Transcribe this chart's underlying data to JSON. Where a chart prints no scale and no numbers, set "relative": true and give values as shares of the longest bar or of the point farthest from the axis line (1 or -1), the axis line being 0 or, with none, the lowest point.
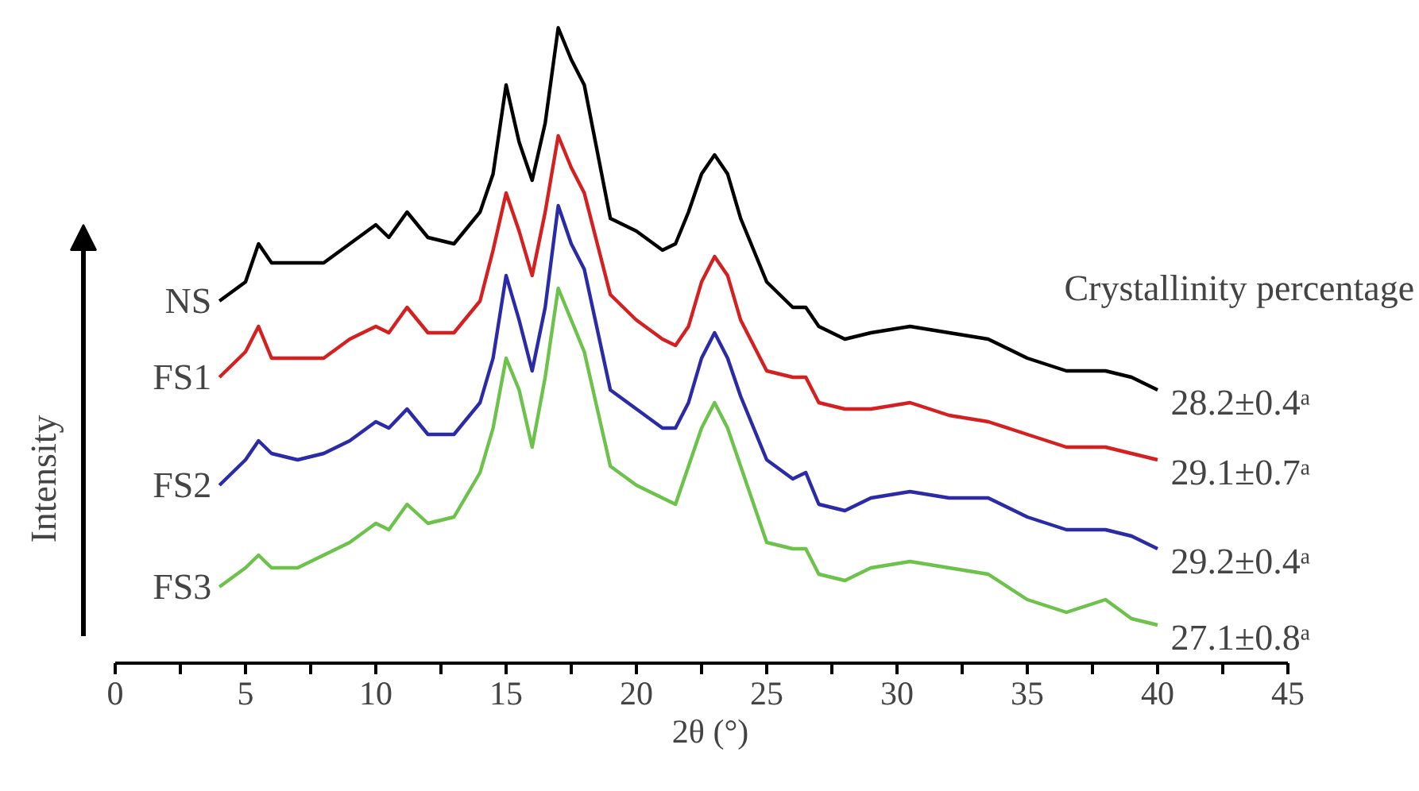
{
  "chart_data": {
    "type": "line",
    "relative": true,
    "xlabel": "2θ (°)",
    "ylabel": "Intensity",
    "xlim": [
      0,
      45
    ],
    "xticks": [
      0,
      5,
      10,
      15,
      20,
      25,
      30,
      35,
      40,
      45
    ],
    "x": [
      4,
      5,
      5.5,
      6,
      7,
      8,
      9,
      10,
      10.5,
      11.2,
      12,
      13,
      14,
      14.5,
      15,
      15.5,
      16,
      16.5,
      17,
      17.5,
      18,
      19,
      20,
      21,
      21.5,
      22,
      22.5,
      23,
      23.5,
      24,
      25,
      26,
      26.5,
      27,
      28,
      29,
      30.5,
      32,
      33.5,
      35,
      36.5,
      38,
      39,
      40
    ],
    "series": [
      {
        "name": "NS",
        "color": "#000000",
        "values": [
          0.57,
          0.6,
          0.66,
          0.63,
          0.63,
          0.63,
          0.66,
          0.69,
          0.67,
          0.71,
          0.67,
          0.66,
          0.71,
          0.77,
          0.91,
          0.82,
          0.76,
          0.85,
          1.0,
          0.95,
          0.91,
          0.7,
          0.68,
          0.65,
          0.66,
          0.71,
          0.77,
          0.8,
          0.77,
          0.7,
          0.6,
          0.56,
          0.56,
          0.53,
          0.51,
          0.52,
          0.53,
          0.52,
          0.51,
          0.48,
          0.46,
          0.46,
          0.45,
          0.43
        ]
      },
      {
        "name": "FS1",
        "color": "#d42020",
        "values": [
          0.45,
          0.49,
          0.53,
          0.48,
          0.48,
          0.48,
          0.51,
          0.53,
          0.52,
          0.56,
          0.52,
          0.52,
          0.57,
          0.65,
          0.74,
          0.68,
          0.61,
          0.71,
          0.83,
          0.78,
          0.74,
          0.58,
          0.54,
          0.51,
          0.5,
          0.53,
          0.6,
          0.64,
          0.61,
          0.54,
          0.46,
          0.45,
          0.45,
          0.41,
          0.4,
          0.4,
          0.41,
          0.39,
          0.38,
          0.36,
          0.34,
          0.34,
          0.33,
          0.32
        ]
      },
      {
        "name": "FS2",
        "color": "#2b2ba8",
        "values": [
          0.28,
          0.32,
          0.35,
          0.33,
          0.32,
          0.33,
          0.35,
          0.38,
          0.37,
          0.4,
          0.36,
          0.36,
          0.41,
          0.48,
          0.61,
          0.54,
          0.46,
          0.56,
          0.72,
          0.66,
          0.62,
          0.43,
          0.4,
          0.37,
          0.37,
          0.41,
          0.48,
          0.52,
          0.48,
          0.42,
          0.32,
          0.29,
          0.3,
          0.25,
          0.24,
          0.26,
          0.27,
          0.26,
          0.26,
          0.23,
          0.21,
          0.21,
          0.2,
          0.18
        ]
      },
      {
        "name": "FS3",
        "color": "#6cc24a",
        "values": [
          0.12,
          0.15,
          0.17,
          0.15,
          0.15,
          0.17,
          0.19,
          0.22,
          0.21,
          0.25,
          0.22,
          0.23,
          0.3,
          0.37,
          0.48,
          0.43,
          0.34,
          0.45,
          0.59,
          0.54,
          0.49,
          0.31,
          0.28,
          0.26,
          0.25,
          0.31,
          0.37,
          0.41,
          0.37,
          0.31,
          0.19,
          0.18,
          0.18,
          0.14,
          0.13,
          0.15,
          0.16,
          0.15,
          0.14,
          0.1,
          0.08,
          0.1,
          0.07,
          0.06
        ]
      }
    ],
    "annotations": [
      "Crystallinity percentage",
      "28.2±0.4ᵃ",
      "29.1±0.7ᵃ",
      "29.2±0.4ᵃ",
      "27.1±0.8ᵃ"
    ],
    "grid": false,
    "legend": false,
    "line_style": "solid",
    "marker": "none"
  }
}
